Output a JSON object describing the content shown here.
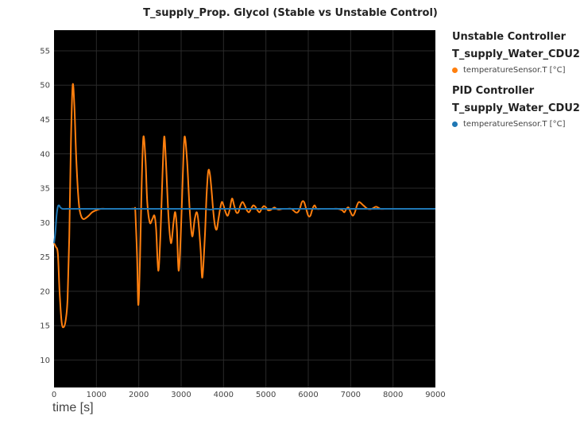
{
  "chart_data": {
    "type": "line",
    "title": "T_supply_Prop. Glycol (Stable vs Unstable Control)",
    "xlabel": "time [s]",
    "ylabel": "",
    "xlim": [
      0,
      9000
    ],
    "ylim": [
      6,
      58
    ],
    "xticks": [
      0,
      1000,
      2000,
      3000,
      4000,
      5000,
      6000,
      7000,
      8000,
      9000
    ],
    "yticks": [
      10,
      15,
      20,
      25,
      30,
      35,
      40,
      45,
      50,
      55
    ],
    "grid": true,
    "background": "#000000",
    "legend_position": "right",
    "legend": {
      "groups": [
        {
          "title": "Unstable Controller",
          "subtitle": "T_supply_Water_CDU2",
          "item": "temperatureSensor.T [°C]",
          "color": "#ff7f0e"
        },
        {
          "title": "PID Controller",
          "subtitle": "T_supply_Water_CDU2",
          "item": "temperatureSensor.T [°C]",
          "color": "#1f77b4"
        }
      ]
    },
    "series": [
      {
        "name": "Unstable Controller",
        "color": "#ff7f0e",
        "x": [
          0,
          40,
          90,
          130,
          180,
          230,
          280,
          320,
          360,
          400,
          440,
          480,
          520,
          560,
          600,
          650,
          700,
          760,
          820,
          900,
          1000,
          1100,
          1200,
          1300,
          1400,
          1500,
          1600,
          1700,
          1800,
          1900,
          1920,
          1960,
          1990,
          2030,
          2070,
          2110,
          2160,
          2200,
          2260,
          2320,
          2370,
          2410,
          2460,
          2510,
          2560,
          2600,
          2640,
          2700,
          2760,
          2820,
          2860,
          2900,
          2940,
          2990,
          3040,
          3080,
          3140,
          3200,
          3260,
          3320,
          3370,
          3410,
          3460,
          3500,
          3560,
          3600,
          3640,
          3680,
          3720,
          3760,
          3800,
          3840,
          3880,
          3920,
          3960,
          4000,
          4050,
          4100,
          4150,
          4200,
          4250,
          4300,
          4350,
          4400,
          4450,
          4500,
          4550,
          4600,
          4650,
          4700,
          4750,
          4800,
          4850,
          4900,
          4950,
          5000,
          5050,
          5100,
          5150,
          5200,
          5250,
          5300,
          5400,
          5500,
          5600,
          5700,
          5750,
          5800,
          5850,
          5900,
          5950,
          6000,
          6050,
          6100,
          6150,
          6200,
          6300,
          6400,
          6500,
          6600,
          6700,
          6800,
          6850,
          6900,
          6950,
          7000,
          7050,
          7100,
          7150,
          7200,
          7300,
          7400,
          7500,
          7600,
          7700,
          7800,
          7900,
          8000,
          8100,
          8200,
          8300,
          8400,
          8500,
          8600,
          8700,
          8800,
          8900,
          9000
        ],
        "y": [
          27,
          26.5,
          25.5,
          20,
          15.5,
          14.8,
          16,
          19,
          28,
          42,
          50,
          47,
          40,
          35,
          32,
          30.8,
          30.5,
          30.7,
          31,
          31.5,
          31.8,
          32,
          32,
          32,
          32,
          32,
          32,
          32,
          32,
          32,
          31.5,
          25,
          18,
          25,
          36,
          42.5,
          39,
          33,
          30,
          30.5,
          31,
          29,
          23,
          28,
          37,
          42.5,
          39,
          31,
          27,
          30,
          31.5,
          29,
          23,
          28,
          37,
          42.5,
          39,
          32,
          28,
          30.5,
          31.5,
          30,
          26,
          22,
          28,
          34,
          37.5,
          37,
          34.5,
          31.5,
          29.5,
          29,
          30.5,
          32,
          33,
          32.5,
          31.5,
          31,
          32,
          33.5,
          32.5,
          31.5,
          31.5,
          32.5,
          33,
          32.5,
          31.8,
          31.5,
          32,
          32.5,
          32.3,
          31.8,
          31.5,
          32,
          32.4,
          32.2,
          31.8,
          31.8,
          32,
          32.2,
          32,
          31.9,
          32,
          32,
          32,
          31.5,
          31.5,
          32,
          33,
          33,
          32,
          31,
          31,
          32,
          32.5,
          32,
          32,
          32,
          32,
          32,
          32,
          31.8,
          31.5,
          32,
          32.2,
          31.5,
          31,
          31.5,
          32.5,
          33,
          32.5,
          32,
          32,
          32.3,
          32,
          32,
          32,
          32,
          32,
          32,
          32,
          32,
          32,
          32,
          32,
          32,
          32,
          32
        ],
        "labels_visible": false
      },
      {
        "name": "PID Controller",
        "color": "#1f77b4",
        "x": [
          0,
          30,
          60,
          90,
          120,
          150,
          200,
          300,
          500,
          1000,
          1500,
          2000,
          2500,
          3000,
          3500,
          3700,
          3800,
          4000,
          4500,
          5000,
          5500,
          6000,
          6500,
          7000,
          7500,
          8000,
          8500,
          9000
        ],
        "y": [
          27,
          28.5,
          31,
          32.3,
          32.5,
          32.2,
          32,
          32,
          32,
          32,
          32,
          32,
          32,
          32,
          32,
          31.9,
          32,
          32,
          32,
          32,
          32,
          32,
          32,
          32,
          32,
          32,
          32,
          32
        ],
        "labels_visible": false
      }
    ]
  }
}
